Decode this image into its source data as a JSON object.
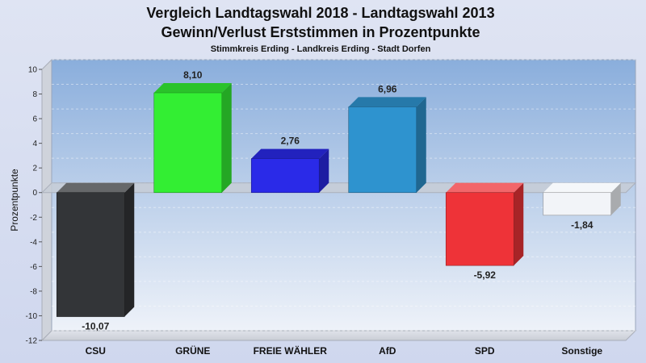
{
  "chart_data": {
    "type": "bar",
    "title_line1": "Vergleich Landtagswahl 2018 - Landtagswahl 2013",
    "title_line2": "Gewinn/Verlust Erststimmen in Prozentpunkte",
    "subtitle": "Stimmkreis Erding - Landkreis Erding - Stadt Dorfen",
    "ylabel": "Prozentpunkte",
    "ylim": [
      -12,
      10
    ],
    "yticks": [
      10,
      8,
      6,
      4,
      2,
      0,
      -2,
      -4,
      -6,
      -8,
      -10,
      -12
    ],
    "categories": [
      "CSU",
      "GRÜNE",
      "FREIE WÄHLER",
      "AfD",
      "SPD",
      "Sonstige"
    ],
    "values": [
      -10.07,
      8.1,
      2.76,
      6.96,
      -5.92,
      -1.84
    ],
    "value_labels": [
      "-10,07",
      "8,10",
      "2,76",
      "6,96",
      "-5,92",
      "-1,84"
    ],
    "colors": [
      "#333538",
      "#33ee33",
      "#2a2ae8",
      "#2e93cf",
      "#ee3338",
      "#f2f4f8"
    ],
    "legend": "none",
    "grid": true
  }
}
